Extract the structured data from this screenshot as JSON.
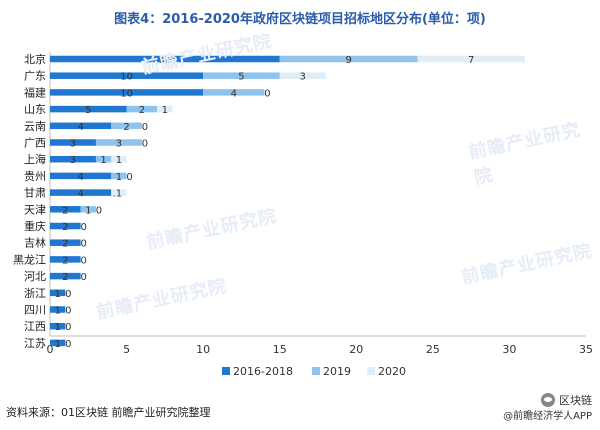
{
  "title": "图表4：2016-2020年政府区块链项目招标地区分布(单位：项)",
  "source": "资料来源：01区块链 前瞻产业研究院整理",
  "brand_primary": "区块链",
  "brand_secondary": "@前瞻经济学人APP",
  "watermark": "前瞻产业研究院",
  "chart_data": {
    "type": "bar",
    "orientation": "horizontal",
    "stacked": true,
    "categories": [
      "北京",
      "广东",
      "福建",
      "山东",
      "云南",
      "广西",
      "上海",
      "贵州",
      "甘肃",
      "天津",
      "重庆",
      "吉林",
      "黑龙江",
      "河北",
      "浙江",
      "四川",
      "江西",
      "江苏"
    ],
    "series": [
      {
        "name": "2016-2018",
        "color": "#1f77d0",
        "values": [
          15,
          10,
          10,
          5,
          4,
          3,
          3,
          4,
          4,
          2,
          2,
          2,
          2,
          2,
          1,
          1,
          1,
          1
        ]
      },
      {
        "name": "2019",
        "color": "#8ec3ee",
        "values": [
          9,
          5,
          4,
          2,
          2,
          3,
          1,
          1,
          0,
          1,
          0,
          0,
          0,
          0,
          0,
          0,
          0,
          0
        ]
      },
      {
        "name": "2020",
        "color": "#deedf8",
        "values": [
          7,
          3,
          0,
          1,
          0,
          0,
          1,
          0,
          1,
          0,
          0,
          0,
          0,
          0,
          0,
          0,
          0,
          0
        ]
      }
    ],
    "data_labels": [
      [
        "15",
        "9",
        "7"
      ],
      [
        "10",
        "5",
        "3"
      ],
      [
        "10",
        "4",
        "0"
      ],
      [
        "5",
        "2",
        "1"
      ],
      [
        "4",
        "2",
        "0"
      ],
      [
        "3",
        "3",
        "0"
      ],
      [
        "3",
        "1",
        "1"
      ],
      [
        "4",
        "1",
        "0"
      ],
      [
        "4",
        "0",
        "1"
      ],
      [
        "2",
        "1",
        "0"
      ],
      [
        "2",
        "0",
        ""
      ],
      [
        "2",
        "0",
        ""
      ],
      [
        "2",
        "0",
        ""
      ],
      [
        "2",
        "0",
        ""
      ],
      [
        "1",
        "0",
        ""
      ],
      [
        "1",
        "0",
        ""
      ],
      [
        "1",
        "0",
        ""
      ],
      [
        "1",
        "0",
        ""
      ]
    ],
    "xticks": [
      0,
      5,
      10,
      15,
      20,
      25,
      30,
      35
    ],
    "xlim": [
      0,
      35
    ],
    "legend_position": "bottom",
    "grid": false
  }
}
